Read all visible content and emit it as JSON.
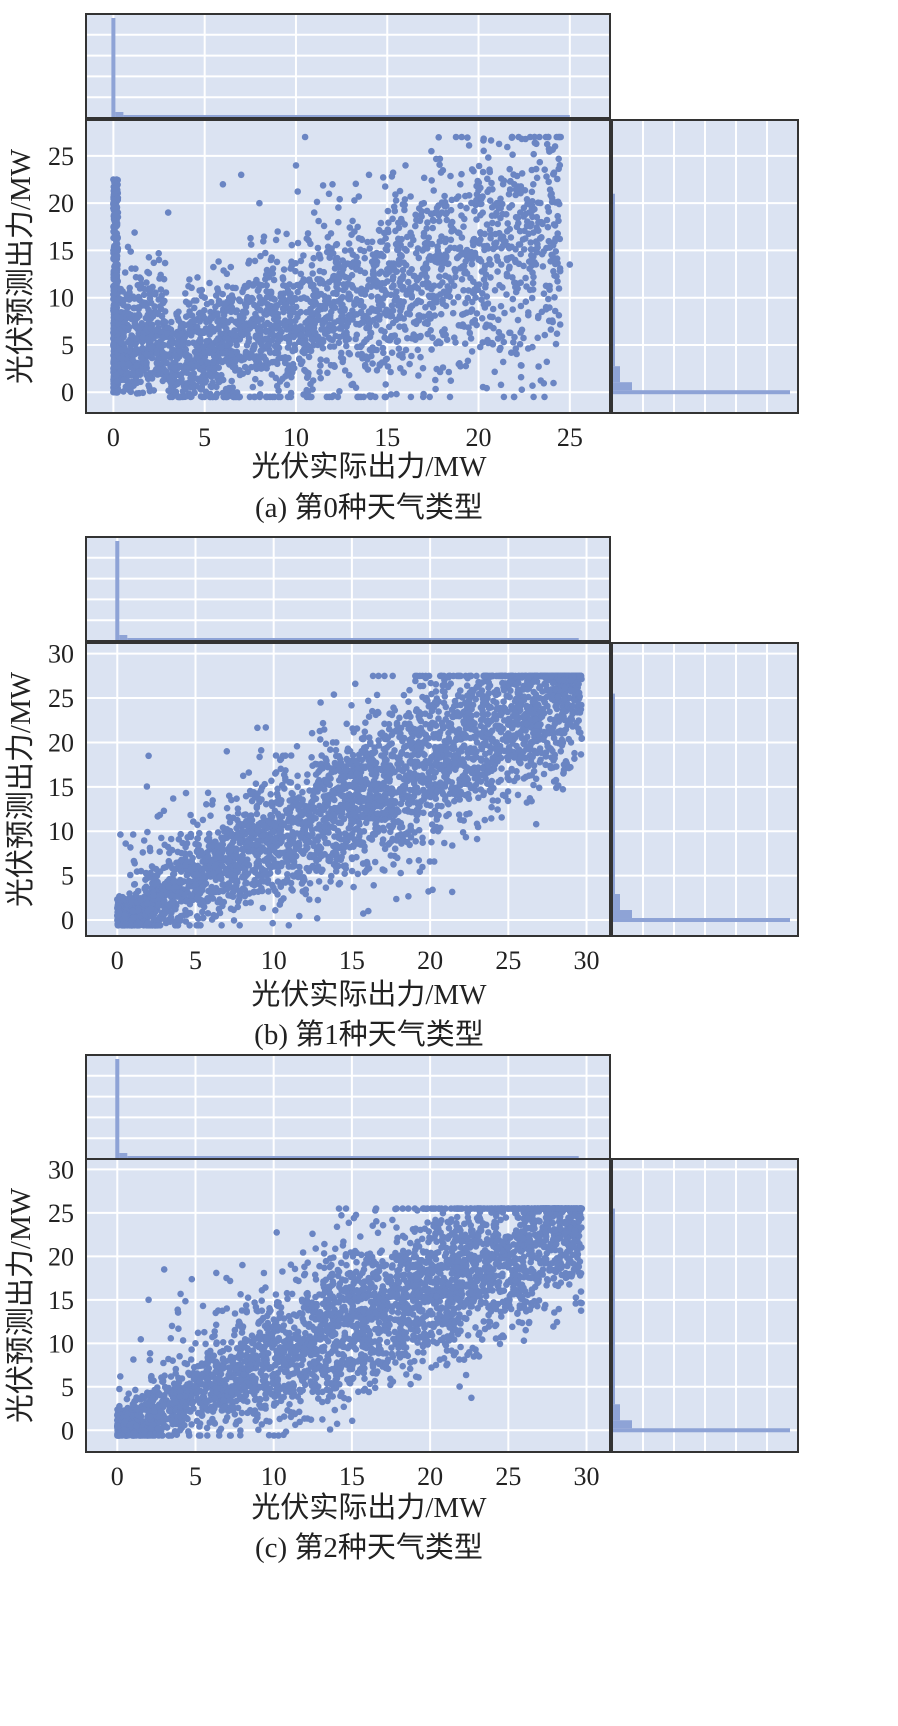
{
  "figure": {
    "background": "#ffffff",
    "axes_background": "#dbe3f2",
    "grid_color": "#ffffff",
    "point_color": "#6a85c3",
    "hist_color": "#8ea3d6"
  },
  "chart_data": [
    {
      "type": "scatter",
      "marginal_histograms": true,
      "title": "",
      "caption": "(a)  第0种天气类型",
      "xlabel": "光伏实际出力/MW",
      "ylabel": "光伏预测出力/MW",
      "xlim": [
        -1.5,
        27.2
      ],
      "ylim": [
        -2.2,
        28.8
      ],
      "xticks": [
        0,
        5,
        10,
        15,
        20,
        25
      ],
      "yticks": [
        0,
        5,
        10,
        15,
        20,
        25
      ],
      "grid": true,
      "pattern": {
        "zero_stack_max": 22.5,
        "cloud_x_max": 25.5,
        "y_min": -0.5,
        "y_max": 27
      },
      "series": [
        {
          "x": [
            0,
            0,
            0,
            0,
            0.2,
            0.5,
            1,
            1.5,
            2,
            2.5,
            3,
            4,
            5,
            6,
            7,
            8,
            9,
            10,
            10.5,
            11,
            12,
            13,
            14,
            15,
            16,
            17,
            18,
            19,
            20,
            21,
            22,
            23,
            24,
            25
          ],
          "y": [
            22.5,
            20,
            15,
            5,
            8,
            3,
            6,
            12,
            2,
            14,
            19,
            4,
            10,
            22,
            23,
            20,
            17,
            24,
            27,
            19,
            22,
            15,
            23,
            13,
            24,
            20,
            19,
            22,
            16,
            20,
            14,
            22,
            21,
            13.5
          ]
        }
      ]
    },
    {
      "type": "scatter",
      "marginal_histograms": true,
      "title": "",
      "caption": "(b)  第1种天气类型",
      "xlabel": "光伏实际出力/MW",
      "ylabel": "光伏预测出力/MW",
      "xlim": [
        -2,
        31.5
      ],
      "ylim": [
        -1.8,
        31.2
      ],
      "xticks": [
        0,
        5,
        10,
        15,
        20,
        25,
        30
      ],
      "yticks": [
        0,
        5,
        10,
        15,
        20,
        25,
        30
      ],
      "grid": true,
      "pattern": {
        "slope": 0.88,
        "spread": 4.5,
        "x_max": 29.7,
        "y_max": 27.5
      },
      "series": [
        {
          "x": [
            0,
            1,
            2,
            3,
            5,
            7,
            8,
            10,
            12,
            13,
            14,
            15,
            17,
            18,
            20,
            21,
            22,
            23,
            25,
            26,
            27,
            28,
            29,
            29.5
          ],
          "y": [
            0.5,
            1,
            18.5,
            2,
            4,
            19,
            10,
            8,
            11,
            24.5,
            20,
            13,
            15,
            17,
            18,
            24,
            19,
            20,
            22,
            23,
            25,
            26,
            27,
            25.5
          ]
        }
      ]
    },
    {
      "type": "scatter",
      "marginal_histograms": true,
      "title": "",
      "caption": "(c)  第2种天气类型",
      "xlabel": "光伏实际出力/MW",
      "ylabel": "光伏预测出力/MW",
      "xlim": [
        -2,
        31.5
      ],
      "ylim": [
        -2.5,
        31.2
      ],
      "xticks": [
        0,
        5,
        10,
        15,
        20,
        25,
        30
      ],
      "yticks": [
        0,
        5,
        10,
        15,
        20,
        25,
        30
      ],
      "grid": true,
      "pattern": {
        "slope": 0.8,
        "spread": 4.5,
        "x_max": 29.7,
        "y_max": 25.5
      },
      "series": [
        {
          "x": [
            0,
            0.5,
            1,
            2,
            3,
            3.5,
            5,
            7,
            8,
            10,
            12,
            13,
            15,
            17,
            18,
            20,
            22,
            24,
            25,
            27,
            28,
            29,
            29.5
          ],
          "y": [
            0.5,
            1,
            3,
            15,
            18.5,
            12,
            10,
            14,
            19,
            10,
            18,
            12,
            13,
            15,
            17,
            15,
            16,
            20,
            21,
            22,
            23,
            24.5,
            24
          ]
        }
      ]
    }
  ]
}
